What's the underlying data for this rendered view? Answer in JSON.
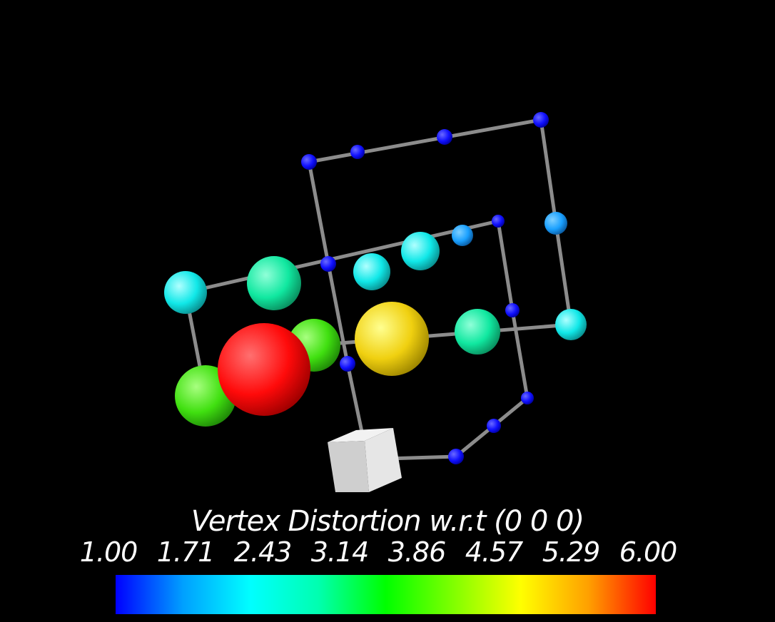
{
  "legend": {
    "title": "Vertex Distortion w.r.t (0 0 0)",
    "ticks": [
      "1.00",
      "1.71",
      "2.43",
      "3.14",
      "3.86",
      "4.57",
      "5.29",
      "6.00"
    ],
    "colors": [
      "#0000ff",
      "#00a0ff",
      "#00ffff",
      "#00ffb0",
      "#00ff00",
      "#80ff00",
      "#ffff00",
      "#ffa000",
      "#ff0000"
    ]
  },
  "vertex_colors": {
    "blue": "#1010ff",
    "azure": "#1aa0ff",
    "cyan": "#10e8e8",
    "spring": "#10e8a0",
    "green": "#40e010",
    "yellow": "#f0d010",
    "red": "#ff0a0a",
    "origin": "#dddddd",
    "bond": "#8c8c8c"
  }
}
